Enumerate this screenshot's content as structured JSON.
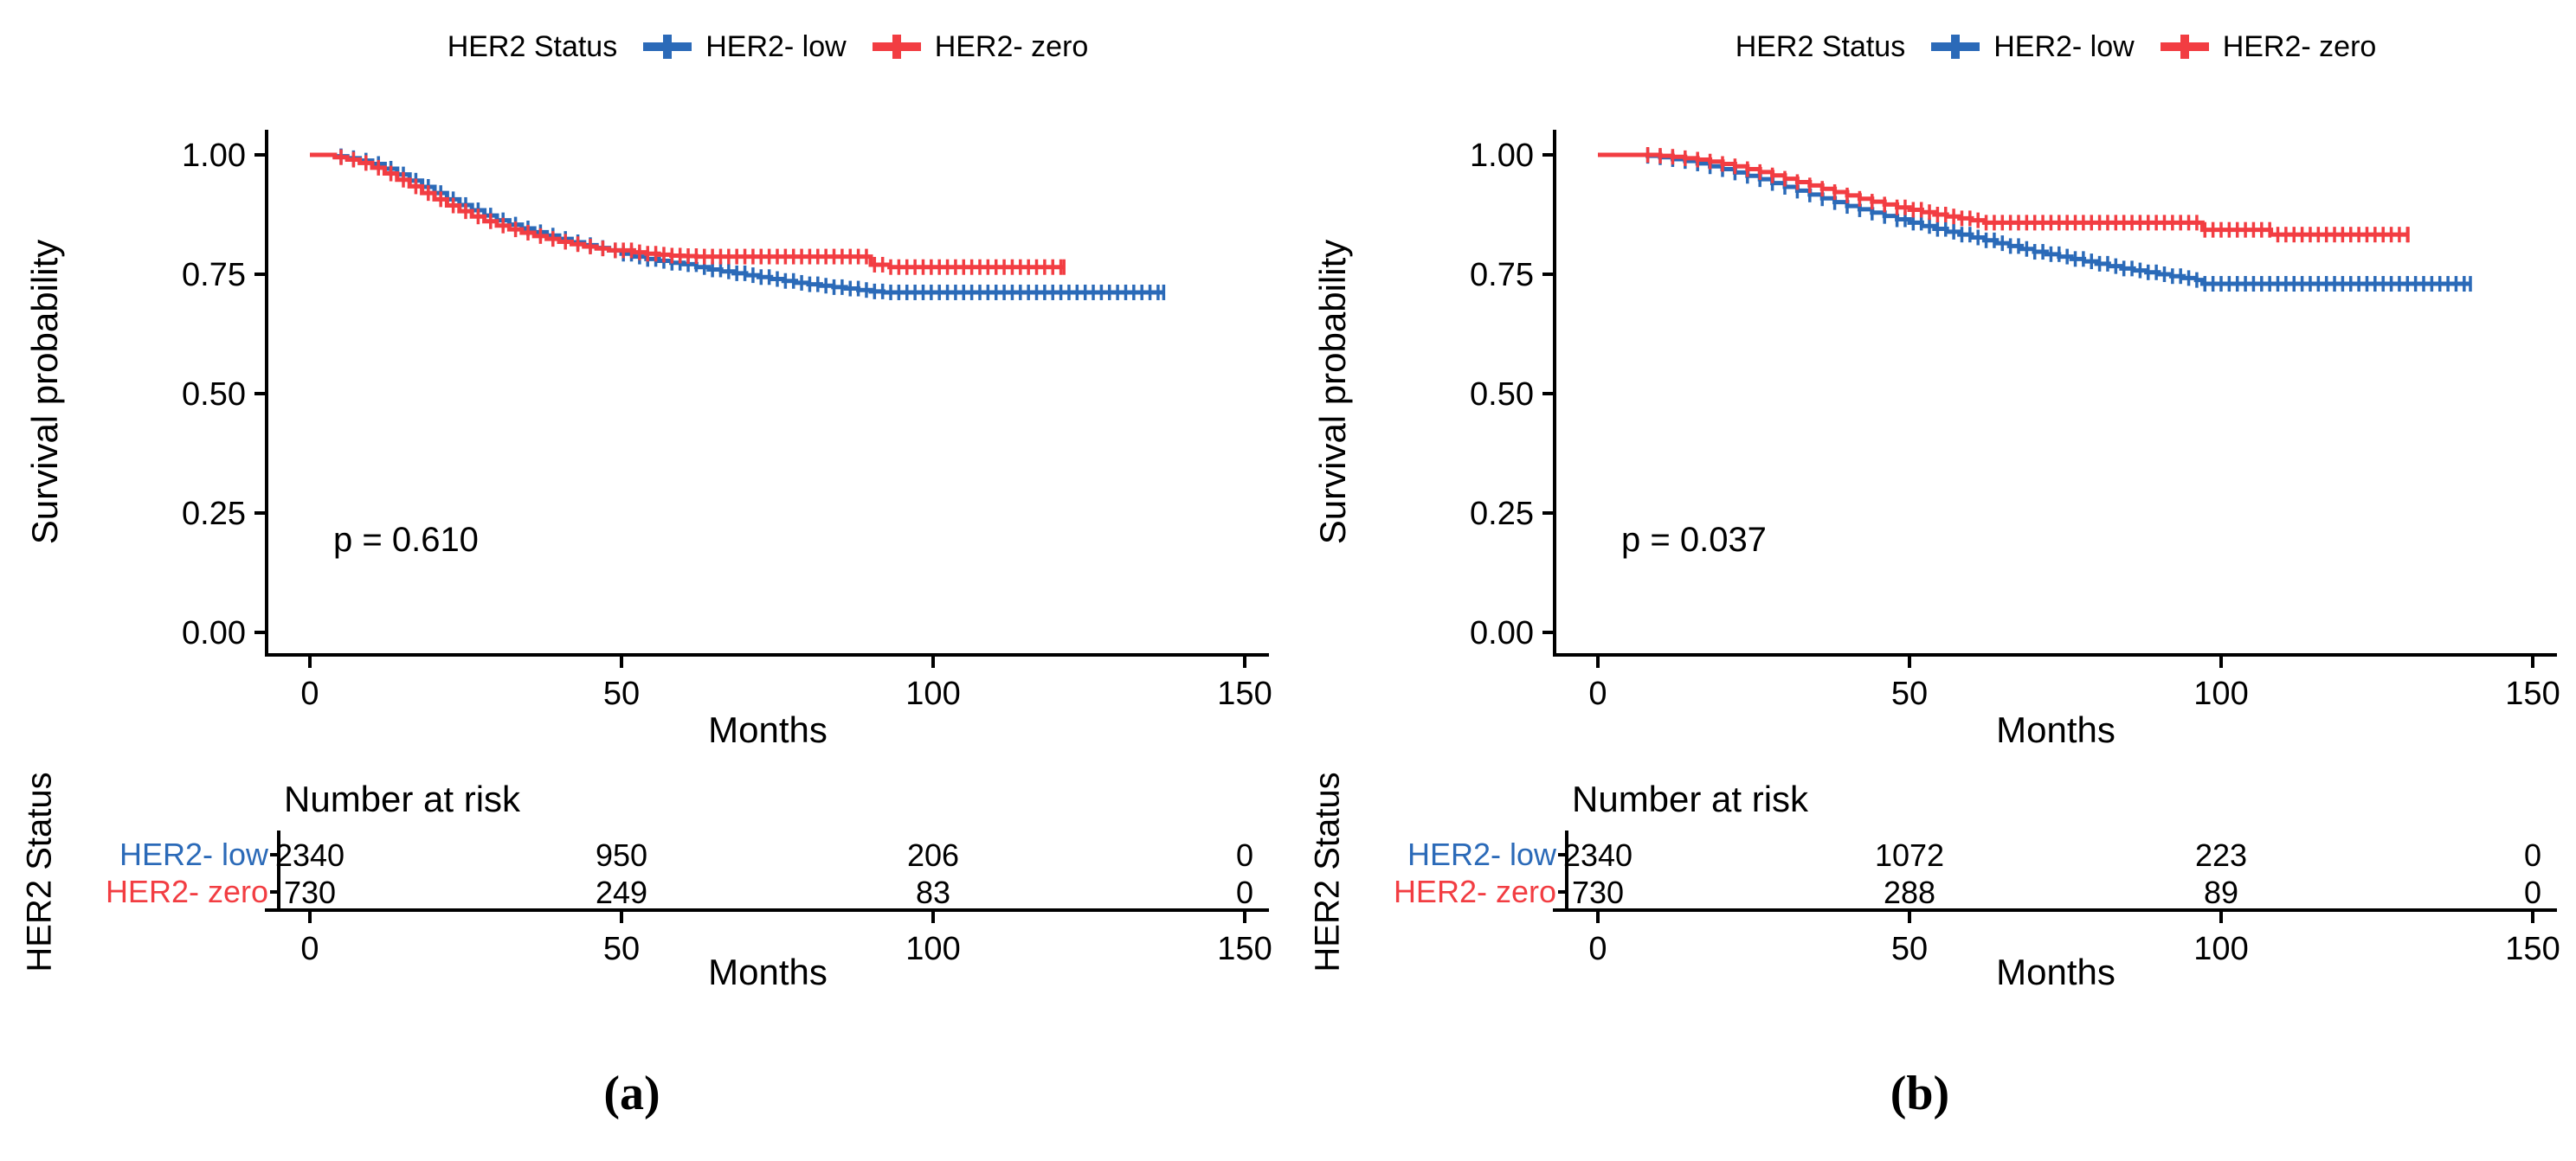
{
  "figure": {
    "description": "Kaplan-Meier survival curves comparing HER2-low and HER2-zero groups with number-at-risk tables"
  },
  "chart_data": [
    {
      "type": "line",
      "subtype": "kaplan-meier",
      "caption": "(a)",
      "p_value": "p = 0.610",
      "xlabel": "Months",
      "ylabel": "Survival probability",
      "xlim": [
        0,
        150
      ],
      "ylim": [
        0,
        1
      ],
      "xticks": [
        0,
        50,
        100,
        150
      ],
      "yticks": [
        "0.00",
        "0.25",
        "0.50",
        "0.75",
        "1.00"
      ],
      "grid": "off",
      "legend": {
        "title": "HER2 Status",
        "position": "top"
      },
      "series": [
        {
          "name": "HER2- low",
          "color": "#2B6AB8",
          "censor_start": 5,
          "end": 137,
          "steps": [
            [
              0,
              1
            ],
            [
              4,
              0.997
            ],
            [
              6,
              0.993
            ],
            [
              8,
              0.988
            ],
            [
              10,
              0.981
            ],
            [
              12,
              0.971
            ],
            [
              14,
              0.959
            ],
            [
              16,
              0.946
            ],
            [
              18,
              0.933
            ],
            [
              20,
              0.92
            ],
            [
              22,
              0.907
            ],
            [
              24,
              0.895
            ],
            [
              26,
              0.884
            ],
            [
              28,
              0.873
            ],
            [
              30,
              0.863
            ],
            [
              32,
              0.854
            ],
            [
              34,
              0.846
            ],
            [
              36,
              0.838
            ],
            [
              38,
              0.831
            ],
            [
              40,
              0.824
            ],
            [
              42,
              0.817
            ],
            [
              44,
              0.811
            ],
            [
              46,
              0.805
            ],
            [
              48,
              0.8
            ],
            [
              50,
              0.793
            ],
            [
              52,
              0.787
            ],
            [
              54,
              0.782
            ],
            [
              56,
              0.778
            ],
            [
              58,
              0.774
            ],
            [
              60,
              0.771
            ],
            [
              62,
              0.765
            ],
            [
              64,
              0.76
            ],
            [
              66,
              0.756
            ],
            [
              68,
              0.752
            ],
            [
              70,
              0.748
            ],
            [
              72,
              0.744
            ],
            [
              74,
              0.74
            ],
            [
              76,
              0.736
            ],
            [
              78,
              0.732
            ],
            [
              80,
              0.729
            ],
            [
              82,
              0.726
            ],
            [
              84,
              0.723
            ],
            [
              86,
              0.72
            ],
            [
              88,
              0.717
            ],
            [
              90,
              0.714
            ],
            [
              92,
              0.712
            ]
          ]
        },
        {
          "name": "HER2- zero",
          "color": "#F23D42",
          "censor_start": 5,
          "end": 121,
          "steps": [
            [
              0,
              1
            ],
            [
              4,
              0.995
            ],
            [
              6,
              0.99
            ],
            [
              8,
              0.983
            ],
            [
              10,
              0.973
            ],
            [
              12,
              0.961
            ],
            [
              14,
              0.948
            ],
            [
              16,
              0.934
            ],
            [
              18,
              0.92
            ],
            [
              20,
              0.907
            ],
            [
              22,
              0.894
            ],
            [
              24,
              0.882
            ],
            [
              26,
              0.871
            ],
            [
              28,
              0.861
            ],
            [
              30,
              0.852
            ],
            [
              32,
              0.844
            ],
            [
              34,
              0.837
            ],
            [
              36,
              0.83
            ],
            [
              38,
              0.824
            ],
            [
              40,
              0.818
            ],
            [
              42,
              0.813
            ],
            [
              44,
              0.808
            ],
            [
              46,
              0.804
            ],
            [
              48,
              0.8
            ],
            [
              52,
              0.796
            ],
            [
              54,
              0.793
            ],
            [
              56,
              0.791
            ],
            [
              58,
              0.789
            ],
            [
              60,
              0.788
            ],
            [
              62,
              0.787
            ],
            [
              90,
              0.77
            ],
            [
              93,
              0.765
            ]
          ]
        }
      ],
      "risk_table": {
        "title": "Number at risk",
        "ylabel": "HER2 Status",
        "xlabel": "Months",
        "xticks": [
          0,
          50,
          100,
          150
        ],
        "rows": [
          {
            "label": "HER2- low",
            "values": [
              "2340",
              "950",
              "206",
              "0"
            ]
          },
          {
            "label": "HER2- zero",
            "values": [
              "730",
              "249",
              "83",
              "0"
            ]
          }
        ]
      }
    },
    {
      "type": "line",
      "subtype": "kaplan-meier",
      "caption": "(b)",
      "p_value": "p = 0.037",
      "xlabel": "Months",
      "ylabel": "Survival probability",
      "xlim": [
        0,
        150
      ],
      "ylim": [
        0,
        1
      ],
      "xticks": [
        0,
        50,
        100,
        150
      ],
      "yticks": [
        "0.00",
        "0.25",
        "0.50",
        "0.75",
        "1.00"
      ],
      "grid": "off",
      "legend": {
        "title": "HER2 Status",
        "position": "top"
      },
      "series": [
        {
          "name": "HER2- low",
          "color": "#2B6AB8",
          "censor_start": 8,
          "end": 140,
          "steps": [
            [
              0,
              1
            ],
            [
              8,
              0.998
            ],
            [
              10,
              0.995
            ],
            [
              12,
              0.991
            ],
            [
              14,
              0.987
            ],
            [
              16,
              0.982
            ],
            [
              18,
              0.976
            ],
            [
              20,
              0.97
            ],
            [
              22,
              0.963
            ],
            [
              24,
              0.956
            ],
            [
              26,
              0.949
            ],
            [
              28,
              0.941
            ],
            [
              30,
              0.933
            ],
            [
              32,
              0.925
            ],
            [
              34,
              0.917
            ],
            [
              36,
              0.909
            ],
            [
              38,
              0.901
            ],
            [
              40,
              0.893
            ],
            [
              42,
              0.886
            ],
            [
              44,
              0.879
            ],
            [
              46,
              0.872
            ],
            [
              48,
              0.865
            ],
            [
              50,
              0.858
            ],
            [
              52,
              0.851
            ],
            [
              54,
              0.845
            ],
            [
              56,
              0.839
            ],
            [
              58,
              0.833
            ],
            [
              60,
              0.827
            ],
            [
              62,
              0.821
            ],
            [
              64,
              0.815
            ],
            [
              66,
              0.809
            ],
            [
              68,
              0.803
            ],
            [
              70,
              0.797
            ],
            [
              72,
              0.792
            ],
            [
              74,
              0.787
            ],
            [
              76,
              0.782
            ],
            [
              78,
              0.777
            ],
            [
              80,
              0.772
            ],
            [
              82,
              0.767
            ],
            [
              84,
              0.762
            ],
            [
              86,
              0.758
            ],
            [
              88,
              0.754
            ],
            [
              90,
              0.75
            ],
            [
              92,
              0.746
            ],
            [
              94,
              0.742
            ],
            [
              96,
              0.738
            ],
            [
              97,
              0.73
            ]
          ]
        },
        {
          "name": "HER2- zero",
          "color": "#F23D42",
          "censor_start": 8,
          "end": 130,
          "steps": [
            [
              0,
              1
            ],
            [
              10,
              0.998
            ],
            [
              12,
              0.996
            ],
            [
              14,
              0.993
            ],
            [
              16,
              0.99
            ],
            [
              18,
              0.986
            ],
            [
              20,
              0.981
            ],
            [
              22,
              0.976
            ],
            [
              24,
              0.97
            ],
            [
              26,
              0.964
            ],
            [
              28,
              0.957
            ],
            [
              30,
              0.95
            ],
            [
              32,
              0.943
            ],
            [
              34,
              0.936
            ],
            [
              36,
              0.929
            ],
            [
              38,
              0.922
            ],
            [
              40,
              0.915
            ],
            [
              42,
              0.908
            ],
            [
              44,
              0.902
            ],
            [
              46,
              0.896
            ],
            [
              48,
              0.89
            ],
            [
              50,
              0.885
            ],
            [
              52,
              0.88
            ],
            [
              54,
              0.875
            ],
            [
              56,
              0.871
            ],
            [
              58,
              0.867
            ],
            [
              60,
              0.863
            ],
            [
              62,
              0.858
            ],
            [
              97,
              0.843
            ],
            [
              108,
              0.833
            ]
          ]
        }
      ],
      "risk_table": {
        "title": "Number at risk",
        "ylabel": "HER2 Status",
        "xlabel": "Months",
        "xticks": [
          0,
          50,
          100,
          150
        ],
        "rows": [
          {
            "label": "HER2- low",
            "values": [
              "2340",
              "1072",
              "223",
              "0"
            ]
          },
          {
            "label": "HER2- zero",
            "values": [
              "730",
              "288",
              "89",
              "0"
            ]
          }
        ]
      }
    }
  ]
}
